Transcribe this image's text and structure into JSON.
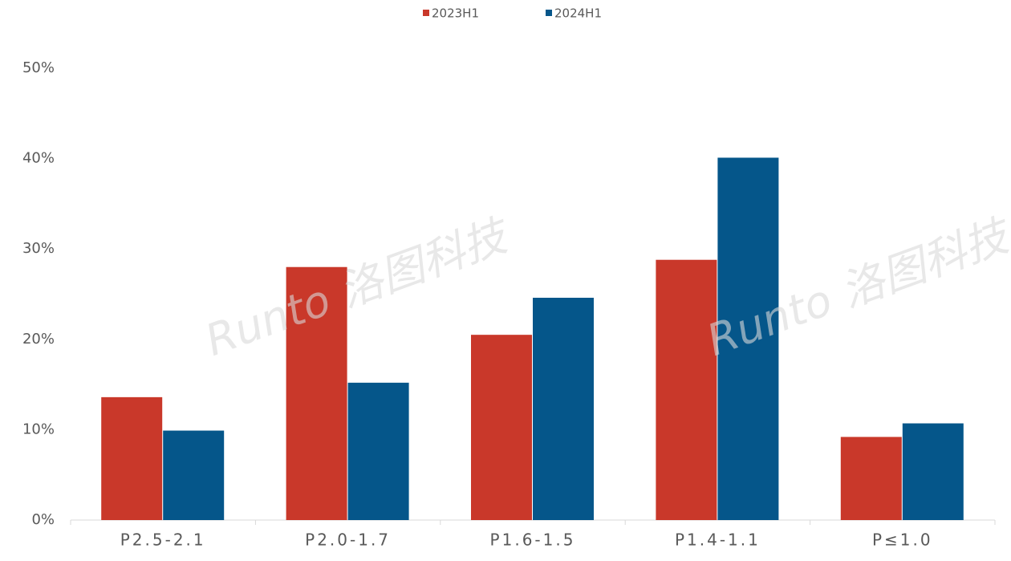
{
  "chart_data": {
    "type": "bar",
    "categories": [
      "P2.5-2.1",
      "P2.0-1.7",
      "P1.6-1.5",
      "P1.4-1.1",
      "P≤1.0"
    ],
    "series": [
      {
        "name": "2023H1",
        "color": "#c9382a",
        "values": [
          13.6,
          28.0,
          20.5,
          28.8,
          9.2
        ]
      },
      {
        "name": "2024H1",
        "color": "#05568a",
        "values": [
          9.9,
          15.2,
          24.6,
          40.1,
          10.7
        ]
      }
    ],
    "ylim": [
      0,
      50
    ],
    "yticks": [
      {
        "value": 0,
        "label": "0%"
      },
      {
        "value": 10,
        "label": "10%"
      },
      {
        "value": 20,
        "label": "20%"
      },
      {
        "value": 30,
        "label": "30%"
      },
      {
        "value": 40,
        "label": "40%"
      },
      {
        "value": 50,
        "label": "50%"
      }
    ],
    "watermark": "Runto 洛图科技",
    "legend": "top"
  }
}
